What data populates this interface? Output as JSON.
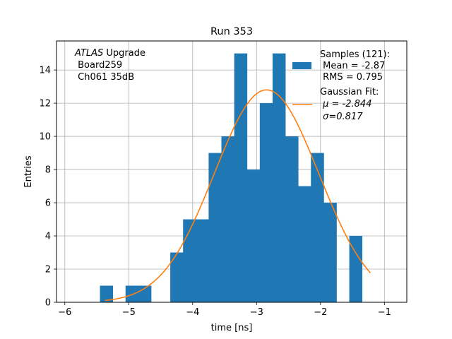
{
  "chart_data": {
    "type": "bar",
    "title": "Run 353",
    "xlabel": "time [ns]",
    "ylabel": "Entries",
    "xlim": [
      -6.13,
      -0.65
    ],
    "ylim": [
      0,
      15.75
    ],
    "grid": true,
    "x_ticks": [
      -6,
      -5,
      -4,
      -3,
      -2,
      -1
    ],
    "x_tick_labels": [
      "−6",
      "−5",
      "−4",
      "−3",
      "−2",
      "−1"
    ],
    "y_ticks": [
      0,
      2,
      4,
      6,
      8,
      10,
      12,
      14
    ],
    "y_tick_labels": [
      "0",
      "2",
      "4",
      "6",
      "8",
      "10",
      "12",
      "14"
    ],
    "histogram": {
      "bin_width": 0.2,
      "bins": [
        {
          "x0": -5.45,
          "value": 1
        },
        {
          "x0": -5.05,
          "value": 1
        },
        {
          "x0": -4.85,
          "value": 1
        },
        {
          "x0": -4.35,
          "value": 3
        },
        {
          "x0": -4.15,
          "value": 5
        },
        {
          "x0": -3.95,
          "value": 5
        },
        {
          "x0": -3.75,
          "value": 9
        },
        {
          "x0": -3.55,
          "value": 10
        },
        {
          "x0": -3.35,
          "value": 15
        },
        {
          "x0": -3.15,
          "value": 8
        },
        {
          "x0": -2.95,
          "value": 12
        },
        {
          "x0": -2.75,
          "value": 15
        },
        {
          "x0": -2.55,
          "value": 10
        },
        {
          "x0": -2.35,
          "value": 7
        },
        {
          "x0": -2.15,
          "value": 9
        },
        {
          "x0": -1.95,
          "value": 6
        },
        {
          "x0": -1.55,
          "value": 4
        }
      ],
      "color": "#1f77b4"
    },
    "fit": {
      "type": "gaussian",
      "mu": -2.844,
      "sigma": 0.817,
      "amplitude": 12.8,
      "x_range": [
        -5.37,
        -1.22
      ],
      "color": "#ff7f0e"
    },
    "legend": {
      "position": "top-right",
      "entries": [
        {
          "lines": [
            "Samples (121):",
            " Mean = -2.87",
            " RMS = 0.795"
          ],
          "marker": "bar"
        },
        {
          "lines": [
            "Gaussian Fit:",
            " μ = -2.844",
            " σ=0.817"
          ],
          "marker": "line"
        }
      ]
    },
    "annotation": {
      "lines": [
        " Upgrade",
        " Board259",
        " Ch061 35dB"
      ],
      "italic_prefix": "ATLAS",
      "position": "top-left"
    }
  }
}
